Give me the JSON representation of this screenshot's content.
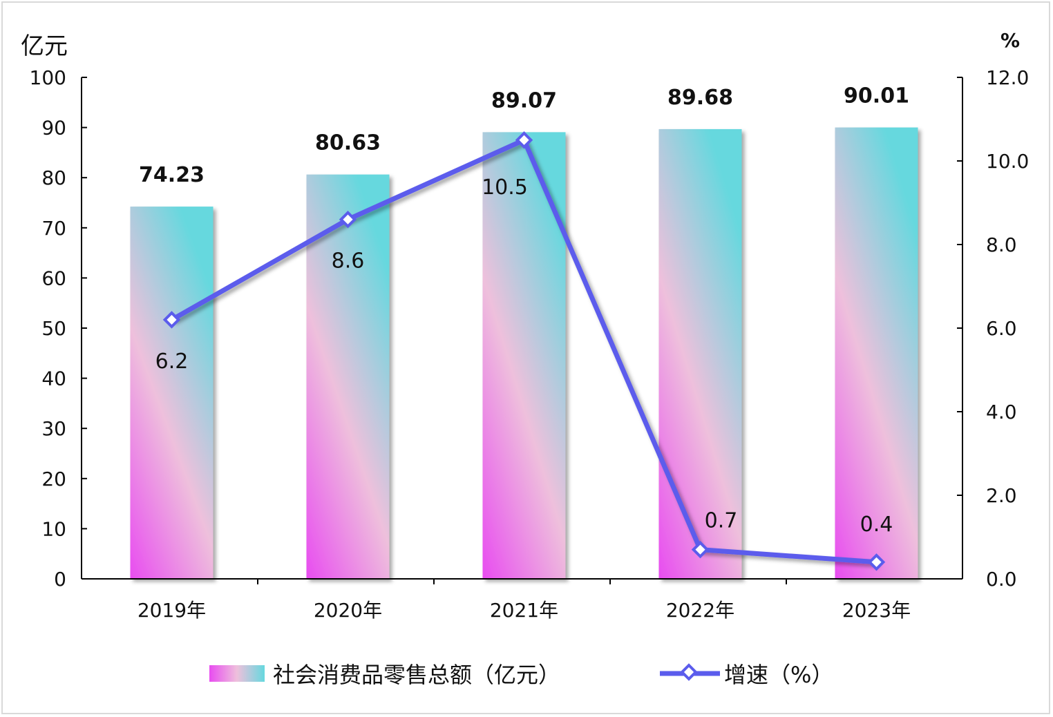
{
  "chart_data": {
    "type": "bar+line",
    "categories": [
      "2019年",
      "2020年",
      "2021年",
      "2022年",
      "2023年"
    ],
    "series": [
      {
        "name": "社会消费品零售总额（亿元）",
        "type": "bar",
        "axis": "left",
        "values": [
          74.23,
          80.63,
          89.07,
          89.68,
          90.01
        ],
        "labels": [
          "74.23",
          "80.63",
          "89.07",
          "89.68",
          "90.01"
        ]
      },
      {
        "name": "增速（%）",
        "type": "line",
        "axis": "right",
        "values": [
          6.2,
          8.6,
          10.5,
          0.7,
          0.4
        ],
        "labels": [
          "6.2",
          "8.6",
          "10.5",
          "0.7",
          "0.4"
        ]
      }
    ],
    "y_left": {
      "label": "亿元",
      "ylim": [
        0,
        100
      ],
      "ticks": [
        "0",
        "10",
        "20",
        "30",
        "40",
        "50",
        "60",
        "70",
        "80",
        "90",
        "100"
      ]
    },
    "y_right": {
      "label": "%",
      "ylim": [
        0,
        12
      ],
      "ticks": [
        "0.0",
        "2.0",
        "4.0",
        "6.0",
        "8.0",
        "10.0",
        "12.0"
      ]
    },
    "legend": "bottom",
    "grid": false,
    "colors": {
      "bar_top": "#66d8de",
      "bar_mid": "#eec0dc",
      "bar_bottom": "#e84cf0",
      "line": "#5b5cec"
    }
  }
}
